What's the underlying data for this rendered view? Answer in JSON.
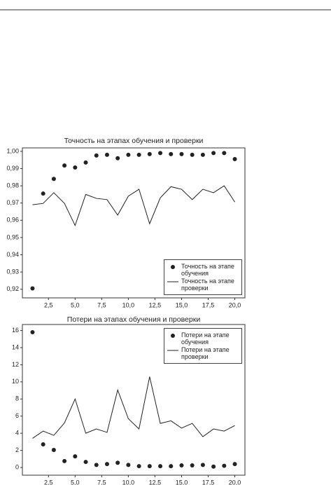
{
  "chart_data": [
    {
      "type": "line",
      "title": "Точность на этапах обучения и проверки",
      "x": [
        1,
        2,
        3,
        4,
        5,
        6,
        7,
        8,
        9,
        10,
        11,
        12,
        13,
        14,
        15,
        16,
        17,
        18,
        19,
        20
      ],
      "series": [
        {
          "name": "Точность на этапе обучения",
          "mode": "markers",
          "color": "#222222",
          "values": [
            0.9205,
            0.9755,
            0.984,
            0.9918,
            0.9906,
            0.9935,
            0.9976,
            0.998,
            0.996,
            0.998,
            0.998,
            0.9984,
            0.999,
            0.9984,
            0.9984,
            0.998,
            0.998,
            0.999,
            0.999,
            0.9955
          ]
        },
        {
          "name": "Точность на этапе проверки",
          "mode": "lines",
          "color": "#222222",
          "values": [
            0.969,
            0.9698,
            0.976,
            0.9698,
            0.957,
            0.975,
            0.9727,
            0.972,
            0.963,
            0.974,
            0.978,
            0.958,
            0.973,
            0.9795,
            0.978,
            0.972,
            0.978,
            0.976,
            0.98,
            0.9706
          ]
        }
      ],
      "xlim": [
        0.05,
        20.95
      ],
      "ylim": [
        0.915,
        1.002
      ],
      "xticks": [
        {
          "value": 2.5,
          "label": "2,5"
        },
        {
          "value": 5,
          "label": "5,0"
        },
        {
          "value": 7.5,
          "label": "7,5"
        },
        {
          "value": 10,
          "label": "10,0"
        },
        {
          "value": 12.5,
          "label": "12,5"
        },
        {
          "value": 15,
          "label": "15,0"
        },
        {
          "value": 17.5,
          "label": "17,5"
        },
        {
          "value": 20,
          "label": "20,0"
        }
      ],
      "yticks": [
        {
          "value": 0.92,
          "label": "0,92"
        },
        {
          "value": 0.93,
          "label": "0,93"
        },
        {
          "value": 0.94,
          "label": "0,94"
        },
        {
          "value": 0.95,
          "label": "0,95"
        },
        {
          "value": 0.96,
          "label": "0,96"
        },
        {
          "value": 0.97,
          "label": "0,97"
        },
        {
          "value": 0.98,
          "label": "0,98"
        },
        {
          "value": 0.99,
          "label": "0,99"
        },
        {
          "value": 1.0,
          "label": "1,00"
        }
      ],
      "legend": "lower right",
      "grid": false
    },
    {
      "type": "line",
      "title": "Потери на этапах обучения и проверки",
      "x": [
        1,
        2,
        3,
        4,
        5,
        6,
        7,
        8,
        9,
        10,
        11,
        12,
        13,
        14,
        15,
        16,
        17,
        18,
        19,
        20
      ],
      "series": [
        {
          "name": "Потери на этапе обучения",
          "mode": "markers",
          "color": "#222222",
          "values": [
            15.8,
            2.7,
            2.05,
            0.75,
            1.3,
            0.65,
            0.3,
            0.4,
            0.55,
            0.3,
            0.15,
            0.15,
            0.15,
            0.15,
            0.25,
            0.25,
            0.3,
            0.1,
            0.2,
            0.4
          ]
        },
        {
          "name": "Потери на этапе проверки",
          "mode": "lines",
          "color": "#222222",
          "values": [
            3.4,
            4.25,
            3.75,
            5.2,
            8.0,
            4.0,
            4.5,
            4.1,
            9.05,
            5.7,
            4.5,
            10.6,
            5.15,
            5.45,
            4.6,
            5.15,
            3.6,
            4.5,
            4.25,
            4.9
          ]
        }
      ],
      "xlim": [
        0.05,
        20.95
      ],
      "ylim": [
        -0.9,
        16.7
      ],
      "xticks": [
        {
          "value": 2.5,
          "label": "2,5"
        },
        {
          "value": 5,
          "label": "5,0"
        },
        {
          "value": 7.5,
          "label": "7,5"
        },
        {
          "value": 10,
          "label": "10,0"
        },
        {
          "value": 12.5,
          "label": "12,5"
        },
        {
          "value": 15,
          "label": "15,0"
        },
        {
          "value": 17.5,
          "label": "17,5"
        },
        {
          "value": 20,
          "label": "20,0"
        }
      ],
      "yticks": [
        0,
        2,
        4,
        6,
        8,
        10,
        12,
        14,
        16
      ],
      "legend": "upper right",
      "grid": false
    }
  ]
}
